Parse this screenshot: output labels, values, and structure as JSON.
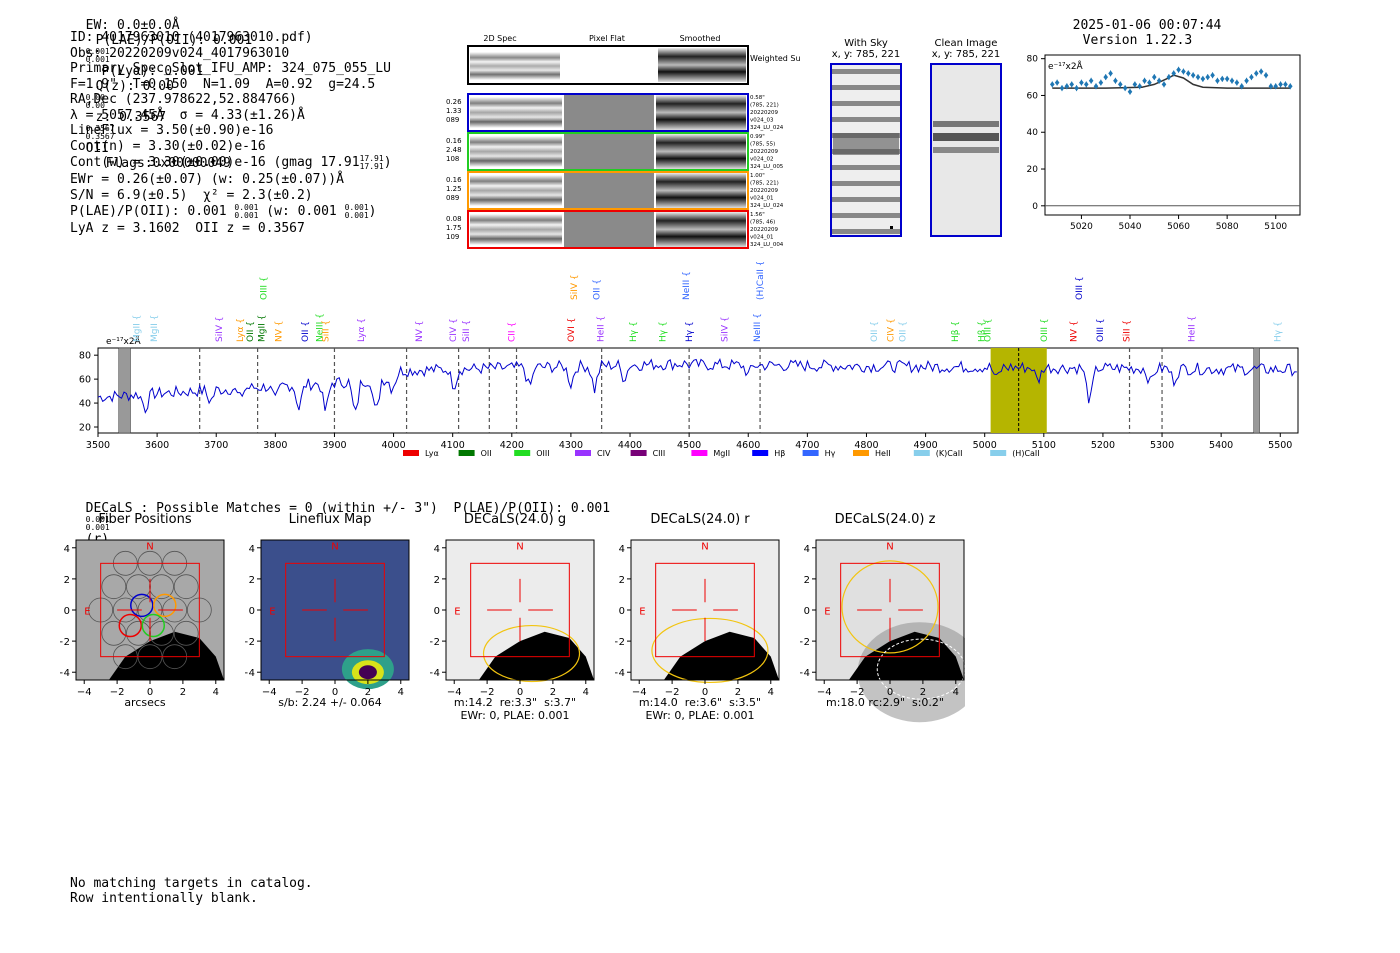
{
  "header": {
    "ew": "EW: 0.0±0.0Å",
    "plae": "P(LAE)/P(OII): 0.001",
    "plae_sup": "0.001",
    "plae_sub": "0.001",
    "plya": "P(Lyα): 0.001",
    "qz": "Q(z): 0.00",
    "qz_sup": "0.00",
    "qz_sub": "0.00",
    "z": "z: 0.3567",
    "z_sup": "0.3567",
    "z_sub": "0.3567",
    "z_line": "OII",
    "flags": "Flags:0x00000049",
    "datetime": "2025-01-06 00:07:44",
    "version": "Version 1.22.3"
  },
  "info": {
    "lines": [
      "ID: 4017963010 (4017963010.pdf)",
      "Obs: 20220209v024_4017963010",
      "Primary Spec_Slot_IFU_AMP: 324_075_055_LU",
      "F=1.9\"  T=0.150  N=1.09  A=0.92  g=24.5",
      "RA,Dec (237.978622,52.884766)",
      "λ = 5057.45Å  σ = 4.33(±1.26)Å",
      "LineFlux = 3.50(±0.90)e-16",
      "Cont(n) = 3.30(±0.02)e-16",
      "Cont(w) = 3.30(±0.00)e-16 (gmag 17.91",
      "EWr = 0.26(±0.07) (w: 0.25(±0.07))Å",
      "S/N = 6.9(±0.5)  χ² = 2.3(±0.2)",
      "P(LAE)/P(OII): 0.001",
      "LyA z = 3.1602  OII z = 0.3567"
    ],
    "gmag_sup": "17.91",
    "gmag_sub": "17.91",
    "gmag_close": ")",
    "plae_sup": "0.001",
    "plae_sub": "0.001",
    "plae_w": "(w: 0.001",
    "plae_w_sup": "0.001",
    "plae_w_sub": "0.001",
    "plae_w_close": ")"
  },
  "spec2d": {
    "col_labels": [
      "2D Spec",
      "Pixel Flat",
      "Smoothed"
    ],
    "weighted_label": "Weighted Sum",
    "rows": [
      {
        "left": [
          "0.26",
          "1.33",
          "089"
        ],
        "right": [
          "0.58\"",
          "(785, 221)",
          "20220209",
          "v024_03",
          "324_LU_024"
        ],
        "color": "#0000cc"
      },
      {
        "left": [
          "0.16",
          "2.48",
          "108"
        ],
        "right": [
          "0.99\"",
          "(785, 55)",
          "20220209",
          "v024_02",
          "324_LU_005"
        ],
        "color": "#22cc22"
      },
      {
        "left": [
          "0.16",
          "1.25",
          "089"
        ],
        "right": [
          "1.00\"",
          "(785, 221)",
          "20220209",
          "v024_01",
          "324_LU_024"
        ],
        "color": "#ff9900"
      },
      {
        "left": [
          "0.08",
          "1.75",
          "109"
        ],
        "right": [
          "1.56\"",
          "(785, 46)",
          "20220209",
          "v024_01",
          "324_LU_004"
        ],
        "color": "#ee0000"
      }
    ]
  },
  "cutouts": {
    "with_sky": {
      "title": "With Sky",
      "coords": "x, y: 785, 221"
    },
    "clean": {
      "title": "Clean Image",
      "coords": "x, y: 785, 221"
    }
  },
  "chart_data": [
    {
      "type": "scatter",
      "title": "",
      "units_label": "e⁻¹⁷x2Å",
      "xlabel": "",
      "ylabel": "",
      "xlim": [
        5005,
        5110
      ],
      "ylim": [
        -5,
        82
      ],
      "xticks": [
        5020,
        5040,
        5060,
        5080,
        5100
      ],
      "yticks": [
        0,
        20,
        40,
        60,
        80
      ],
      "x": [
        5008,
        5010,
        5012,
        5014,
        5016,
        5018,
        5020,
        5022,
        5024,
        5026,
        5028,
        5030,
        5032,
        5034,
        5036,
        5038,
        5040,
        5042,
        5044,
        5046,
        5048,
        5050,
        5052,
        5054,
        5056,
        5058,
        5060,
        5062,
        5064,
        5066,
        5068,
        5070,
        5072,
        5074,
        5076,
        5078,
        5080,
        5082,
        5084,
        5086,
        5088,
        5090,
        5092,
        5094,
        5096,
        5098,
        5100,
        5102,
        5104,
        5106
      ],
      "y": [
        66,
        67,
        64,
        65,
        66,
        64,
        67,
        66,
        68,
        65,
        67,
        70,
        72,
        68,
        66,
        64,
        62,
        66,
        65,
        68,
        67,
        70,
        68,
        66,
        70,
        72,
        74,
        73,
        72,
        71,
        70,
        69,
        70,
        71,
        68,
        69,
        69,
        68,
        67,
        65,
        68,
        70,
        72,
        73,
        71,
        65,
        65,
        66,
        66,
        65
      ],
      "model_x": [
        5008,
        5030,
        5045,
        5050,
        5055,
        5058,
        5062,
        5066,
        5070,
        5080,
        5106
      ],
      "model_y": [
        64,
        64,
        64.5,
        66,
        69,
        71,
        69.5,
        66,
        64.5,
        64,
        64
      ]
    },
    {
      "type": "line",
      "title": "",
      "units_label": "e⁻¹⁷x2Å",
      "xlim": [
        3500,
        5530
      ],
      "ylim": [
        15,
        86
      ],
      "xticks": [
        3500,
        3600,
        3700,
        3800,
        3900,
        4000,
        4100,
        4200,
        4300,
        4400,
        4500,
        4600,
        4700,
        4800,
        4900,
        5000,
        5100,
        5200,
        5300,
        5400,
        5500
      ],
      "yticks": [
        20,
        40,
        60,
        80
      ],
      "highlight_range": [
        5010,
        5105
      ],
      "line_center": 5057.45,
      "masked_regions": [
        [
          3535,
          3555
        ],
        [
          5455,
          5465
        ]
      ],
      "dashed_lines": [
        3672,
        3770,
        3900,
        4022,
        4110,
        4162,
        4208,
        4352,
        4500,
        4620,
        5245,
        5300
      ],
      "legend": [
        "Lyα",
        "OII",
        "OIII",
        "CIV",
        "CIII",
        "MgII",
        "Hβ",
        "Hγ",
        "HeII",
        "(K)CaII",
        "(H)CaII"
      ],
      "legend_colors": [
        "#ee0000",
        "#007700",
        "#22dd22",
        "#9933ff",
        "#770077",
        "#ff00ff",
        "#0000ff",
        "#3366ff",
        "#ff9900",
        "#87ceeb",
        "#87ceeb"
      ],
      "line_labels": [
        {
          "text": "MgII",
          "x": 3570,
          "color": "#87ceeb"
        },
        {
          "text": "MgII",
          "x": 3600,
          "color": "#87ceeb"
        },
        {
          "text": "SiIV",
          "x": 3710,
          "color": "#9933ff"
        },
        {
          "text": "Lyα",
          "x": 3745,
          "color": "#ff9900"
        },
        {
          "text": "OII",
          "x": 3762,
          "color": "#007700"
        },
        {
          "text": "MgII",
          "x": 3782,
          "color": "#007700"
        },
        {
          "text": "OIII",
          "x": 3785,
          "color": "#22dd22",
          "row": "top"
        },
        {
          "text": "NV",
          "x": 3810,
          "color": "#ff9900"
        },
        {
          "text": "OII",
          "x": 3855,
          "color": "#0000cc"
        },
        {
          "text": "NeIII",
          "x": 3880,
          "color": "#22dd22"
        },
        {
          "text": "SiII",
          "x": 3890,
          "color": "#ff9900"
        },
        {
          "text": "Lyα",
          "x": 3950,
          "color": "#9933ff"
        },
        {
          "text": "NV",
          "x": 4048,
          "color": "#9933ff"
        },
        {
          "text": "CIV",
          "x": 4106,
          "color": "#9933ff"
        },
        {
          "text": "SiII",
          "x": 4128,
          "color": "#9933ff"
        },
        {
          "text": "CII",
          "x": 4205,
          "color": "#ff00ff"
        },
        {
          "text": "OVI",
          "x": 4305,
          "color": "#ee0000"
        },
        {
          "text": "SiIV",
          "x": 4310,
          "color": "#ff9900",
          "row": "top"
        },
        {
          "text": "HeII",
          "x": 4355,
          "color": "#9933ff"
        },
        {
          "text": "OII",
          "x": 4348,
          "color": "#3366ff",
          "row": "top"
        },
        {
          "text": "Hγ",
          "x": 4410,
          "color": "#22dd22"
        },
        {
          "text": "Hγ",
          "x": 4460,
          "color": "#22dd22"
        },
        {
          "text": "NeIII",
          "x": 4500,
          "color": "#3366ff",
          "row": "top"
        },
        {
          "text": "Hγ",
          "x": 4505,
          "color": "#0000cc"
        },
        {
          "text": "SiIV",
          "x": 4565,
          "color": "#9933ff"
        },
        {
          "text": "NeIII",
          "x": 4620,
          "color": "#3366ff"
        },
        {
          "text": "(H)CaII",
          "x": 4625,
          "color": "#3366ff",
          "row": "top"
        },
        {
          "text": "OII",
          "x": 4818,
          "color": "#87ceeb"
        },
        {
          "text": "CIV",
          "x": 4846,
          "color": "#ff9900"
        },
        {
          "text": "OII",
          "x": 4866,
          "color": "#87ceeb"
        },
        {
          "text": "Hβ",
          "x": 4955,
          "color": "#22dd22"
        },
        {
          "text": "Hβ",
          "x": 5000,
          "color": "#22dd22"
        },
        {
          "text": "OIII",
          "x": 5010,
          "color": "#22dd22"
        },
        {
          "text": "OIII",
          "x": 5105,
          "color": "#22dd22"
        },
        {
          "text": "NV",
          "x": 5155,
          "color": "#ee0000"
        },
        {
          "text": "OIII",
          "x": 5165,
          "color": "#0000cc",
          "row": "top"
        },
        {
          "text": "OIII",
          "x": 5200,
          "color": "#0000cc"
        },
        {
          "text": "SiII",
          "x": 5245,
          "color": "#ee0000"
        },
        {
          "text": "HeII",
          "x": 5355,
          "color": "#9933ff"
        },
        {
          "text": "Hγ",
          "x": 5500,
          "color": "#87ceeb"
        }
      ]
    }
  ],
  "decals": {
    "headline": "DECaLS : Possible Matches = 0 (within +/- 3\")  P(LAE)/P(OII): 0.001",
    "headline_sup": "0.001",
    "headline_sub": "0.001",
    "headline_band": "(r)",
    "panels": [
      {
        "title": "Fiber Positions",
        "caption1": "arcsecs",
        "caption2": ""
      },
      {
        "title": "Lineflux Map",
        "caption1": "s/b: 2.24 +/- 0.064",
        "caption2": ""
      },
      {
        "title": "DECaLS(24.0) g",
        "caption1": "m:14.2  re:3.3\"  s:3.7\"",
        "caption2": "EWr: 0, PLAE: 0.001"
      },
      {
        "title": "DECaLS(24.0) r",
        "caption1": "m:14.0  re:3.6\"  s:3.5\"",
        "caption2": "EWr: 0, PLAE: 0.001"
      },
      {
        "title": "DECaLS(24.0) z",
        "caption1": "m:18.0 rc:2.9\"  s:0.2\"",
        "caption2": ""
      }
    ],
    "tick_labels": [
      "−4",
      "−2",
      "0",
      "2",
      "4"
    ],
    "compass_n": "N",
    "compass_e": "E"
  },
  "footer": {
    "line1": "No matching targets in catalog.",
    "line2": "Row intentionally blank."
  }
}
